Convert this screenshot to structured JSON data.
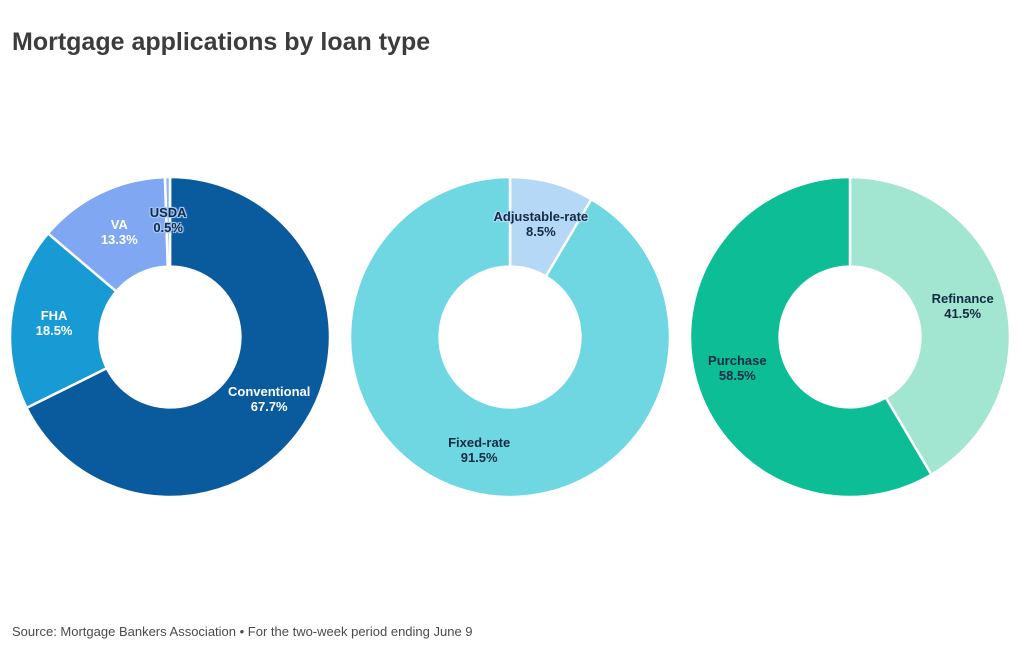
{
  "header": {
    "title": "Mortgage applications by loan type"
  },
  "footer": {
    "source": "Source: Mortgage Bankers Association • For the two-week period ending June 9"
  },
  "chart_data": [
    {
      "type": "pie",
      "variant": "donut",
      "name": "loan-type",
      "labels": [
        "Conventional",
        "FHA",
        "VA",
        "USDA"
      ],
      "values": [
        67.7,
        18.5,
        13.3,
        0.5
      ],
      "pct_labels": [
        "67.7%",
        "18.5%",
        "13.3%",
        "0.5%"
      ],
      "colors": [
        "#0a5a9e",
        "#189bd5",
        "#7fa7f2",
        "#8fb5f4"
      ],
      "label_colors": [
        "#ffffff",
        "#ffffff",
        "#ffffff",
        "#132b43"
      ],
      "label_halos": [
        "",
        "",
        "",
        "#a5c6f8"
      ],
      "start_angle_deg": 0,
      "clockwise": true,
      "inner_radius_ratio": 0.44,
      "label_radius_ratio": 0.73,
      "legend": "none"
    },
    {
      "type": "pie",
      "variant": "donut",
      "name": "rate-type",
      "labels": [
        "Adjustable-rate",
        "Fixed-rate"
      ],
      "values": [
        8.5,
        91.5
      ],
      "pct_labels": [
        "8.5%",
        "91.5%"
      ],
      "colors": [
        "#b6d8f7",
        "#6fd7e2"
      ],
      "label_colors": [
        "#132b43",
        "#132b43"
      ],
      "label_halos": [
        "#b6d8f7",
        ""
      ],
      "start_angle_deg": 0,
      "clockwise": true,
      "inner_radius_ratio": 0.44,
      "label_radius_ratio": 0.73,
      "legend": "none"
    },
    {
      "type": "pie",
      "variant": "donut",
      "name": "loan-purpose",
      "labels": [
        "Refinance",
        "Purchase"
      ],
      "values": [
        41.5,
        58.5
      ],
      "pct_labels": [
        "41.5%",
        "58.5%"
      ],
      "colors": [
        "#a2e5d0",
        "#0cbd95"
      ],
      "label_colors": [
        "#132b43",
        "#132b43"
      ],
      "label_halos": [
        "",
        ""
      ],
      "start_angle_deg": 0,
      "clockwise": true,
      "inner_radius_ratio": 0.44,
      "label_radius_ratio": 0.73,
      "legend": "none"
    }
  ]
}
